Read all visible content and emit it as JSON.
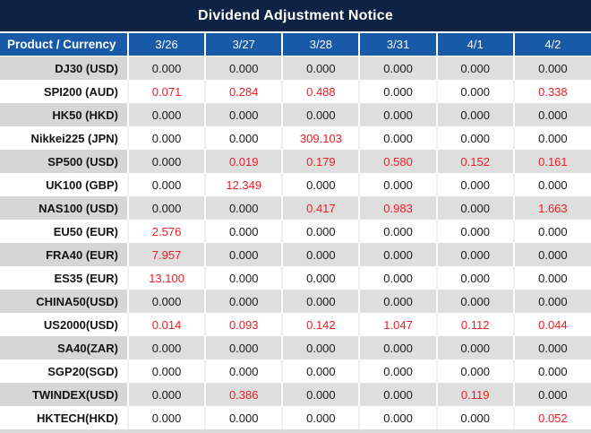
{
  "title": "Dividend Adjustment Notice",
  "table": {
    "product_header": "Product / Currency",
    "date_headers": [
      "3/26",
      "3/27",
      "3/28",
      "3/31",
      "4/1",
      "4/2"
    ],
    "rows": [
      {
        "product": "DJ30 (USD)",
        "values": [
          "0.000",
          "0.000",
          "0.000",
          "0.000",
          "0.000",
          "0.000"
        ]
      },
      {
        "product": "SPI200 (AUD)",
        "values": [
          "0.071",
          "0.284",
          "0.488",
          "0.000",
          "0.000",
          "0.338"
        ]
      },
      {
        "product": "HK50 (HKD)",
        "values": [
          "0.000",
          "0.000",
          "0.000",
          "0.000",
          "0.000",
          "0.000"
        ]
      },
      {
        "product": "Nikkei225 (JPN)",
        "values": [
          "0.000",
          "0.000",
          "309.103",
          "0.000",
          "0.000",
          "0.000"
        ]
      },
      {
        "product": "SP500 (USD)",
        "values": [
          "0.000",
          "0.019",
          "0.179",
          "0.580",
          "0.152",
          "0.161"
        ]
      },
      {
        "product": "UK100 (GBP)",
        "values": [
          "0.000",
          "12.349",
          "0.000",
          "0.000",
          "0.000",
          "0.000"
        ]
      },
      {
        "product": "NAS100 (USD)",
        "values": [
          "0.000",
          "0.000",
          "0.417",
          "0.983",
          "0.000",
          "1.663"
        ]
      },
      {
        "product": "EU50 (EUR)",
        "values": [
          "2.576",
          "0.000",
          "0.000",
          "0.000",
          "0.000",
          "0.000"
        ]
      },
      {
        "product": "FRA40 (EUR)",
        "values": [
          "7.957",
          "0.000",
          "0.000",
          "0.000",
          "0.000",
          "0.000"
        ]
      },
      {
        "product": "ES35 (EUR)",
        "values": [
          "13.100",
          "0.000",
          "0.000",
          "0.000",
          "0.000",
          "0.000"
        ]
      },
      {
        "product": "CHINA50(USD)",
        "values": [
          "0.000",
          "0.000",
          "0.000",
          "0.000",
          "0.000",
          "0.000"
        ]
      },
      {
        "product": "US2000(USD)",
        "values": [
          "0.014",
          "0.093",
          "0.142",
          "1.047",
          "0.112",
          "0.044"
        ]
      },
      {
        "product": "SA40(ZAR)",
        "values": [
          "0.000",
          "0.000",
          "0.000",
          "0.000",
          "0.000",
          "0.000"
        ]
      },
      {
        "product": "SGP20(SGD)",
        "values": [
          "0.000",
          "0.000",
          "0.000",
          "0.000",
          "0.000",
          "0.000"
        ]
      },
      {
        "product": "TWINDEX(USD)",
        "values": [
          "0.000",
          "0.386",
          "0.000",
          "0.000",
          "0.119",
          "0.000"
        ]
      },
      {
        "product": "HKTECH(HKD)",
        "values": [
          "0.000",
          "0.000",
          "0.000",
          "0.000",
          "0.000",
          "0.052"
        ]
      }
    ]
  },
  "colors": {
    "title_bar": "#0d2244",
    "header_blue": "#1859a8",
    "row_stripe_gray": "#dedede",
    "product_stripe_gray": "#d6d6d6",
    "value_text": "#1a1a1a",
    "nonzero_highlight_red": "#ee1c25"
  }
}
